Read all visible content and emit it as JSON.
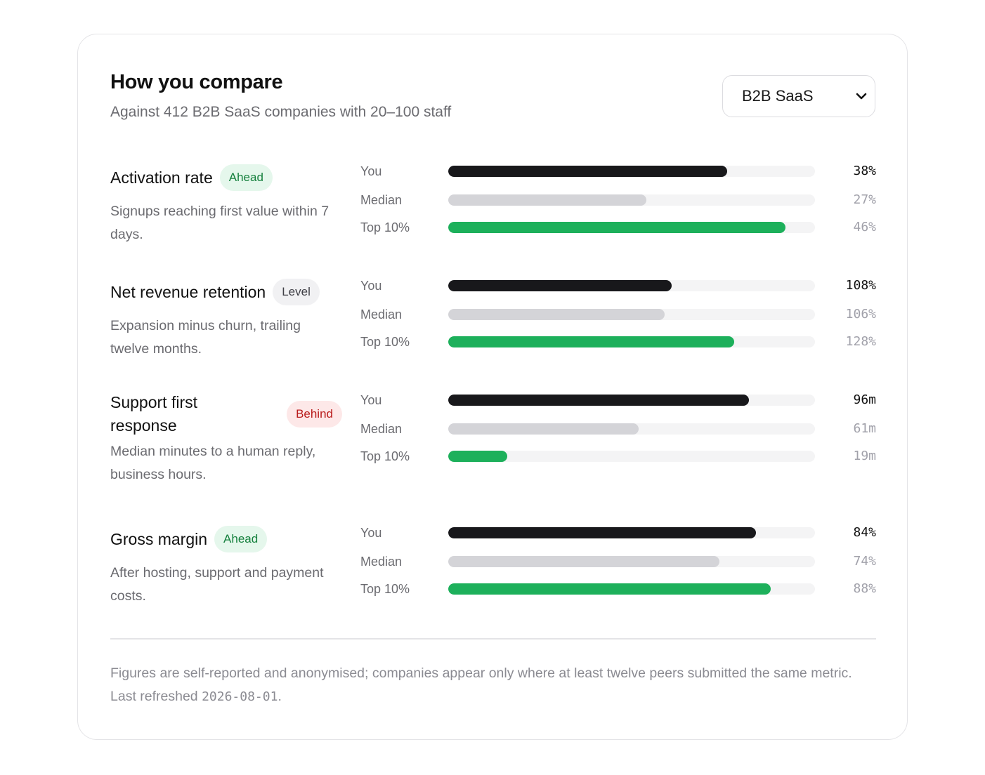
{
  "header": {
    "title": "How you compare",
    "subtitle": "Against 412 B2B SaaS companies with 20–100 staff"
  },
  "segment_select": {
    "value": "B2B SaaS",
    "icon": "chevron-down-icon"
  },
  "row_labels": {
    "you": "You",
    "median": "Median",
    "top": "Top 10%"
  },
  "metrics": [
    {
      "name": "Activation rate",
      "status": "Ahead",
      "status_kind": "ahead",
      "description": "Signups reaching first value within 7 days.",
      "you": {
        "value": "38%",
        "fraction": 0.76
      },
      "median": {
        "value": "27%",
        "fraction": 0.54
      },
      "top": {
        "value": "46%",
        "fraction": 0.92
      }
    },
    {
      "name": "Net revenue retention",
      "status": "Level",
      "status_kind": "level",
      "description": "Expansion minus churn, trailing twelve months.",
      "you": {
        "value": "108%",
        "fraction": 0.61
      },
      "median": {
        "value": "106%",
        "fraction": 0.59
      },
      "top": {
        "value": "128%",
        "fraction": 0.78
      }
    },
    {
      "name": "Support first response",
      "status": "Behind",
      "status_kind": "behind",
      "description": "Median minutes to a human reply, business hours.",
      "you": {
        "value": "96m",
        "fraction": 0.82
      },
      "median": {
        "value": "61m",
        "fraction": 0.52
      },
      "top": {
        "value": "19m",
        "fraction": 0.16
      }
    },
    {
      "name": "Gross margin",
      "status": "Ahead",
      "status_kind": "ahead",
      "description": "After hosting, support and payment costs.",
      "you": {
        "value": "84%",
        "fraction": 0.84
      },
      "median": {
        "value": "74%",
        "fraction": 0.74
      },
      "top": {
        "value": "88%",
        "fraction": 0.88
      }
    }
  ],
  "footer": {
    "text": "Figures are self-reported and anonymised; companies appear only where at least twelve peers submitted the same metric. Last refreshed ",
    "date": "2026-08-01",
    "end": "."
  }
}
